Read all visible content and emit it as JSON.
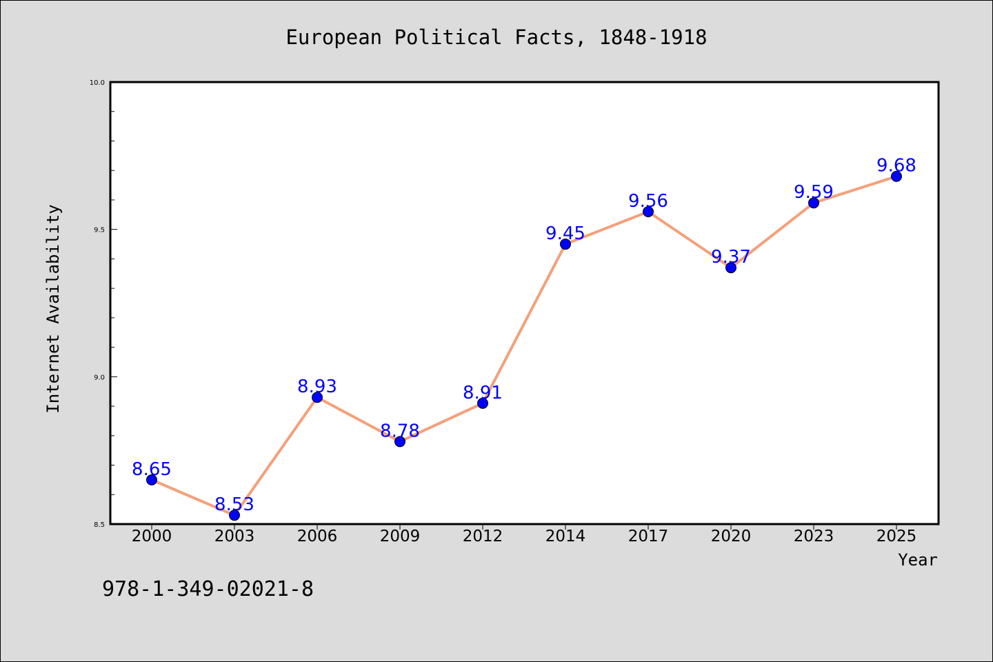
{
  "chart_data": {
    "type": "line",
    "title": "European Political Facts, 1848-1918",
    "xlabel": "Year",
    "ylabel": "Internet Availability",
    "categories": [
      "2000",
      "2003",
      "2006",
      "2009",
      "2012",
      "2014",
      "2017",
      "2020",
      "2023",
      "2025"
    ],
    "series": [
      {
        "values": [
          8.65,
          8.53,
          8.93,
          8.78,
          8.91,
          9.45,
          9.56,
          9.37,
          9.59,
          9.68
        ],
        "data_labels": [
          "8.65",
          "8.53",
          "8.93",
          "8.78",
          "8.91",
          "9.45",
          "9.56",
          "9.37",
          "9.59",
          "9.68"
        ]
      }
    ],
    "ylim": [
      8.5,
      10.0
    ],
    "yticks": [
      "8.5",
      "9.0",
      "9.5",
      "10.0"
    ],
    "grid": false,
    "legend": "none",
    "colors": {
      "line": "#f4a07a",
      "marker": "#0000ff",
      "label": "#0000ff",
      "background": "#dcdcdc",
      "plot_area": "#ffffff"
    }
  },
  "annotation": {
    "isbn": "978-1-349-02021-8"
  }
}
